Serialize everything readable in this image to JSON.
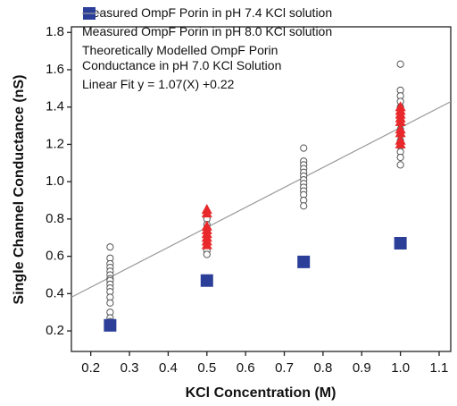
{
  "chart_data": {
    "type": "scatter",
    "x_label": "KCl Concentration (M)",
    "y_label": "Single Channel Conductance (nS)",
    "xlim": [
      0.15,
      1.13
    ],
    "ylim": [
      0.09,
      1.83
    ],
    "xticks": [
      0.2,
      0.3,
      0.4,
      0.5,
      0.6,
      0.7,
      0.8,
      0.9,
      {
        "value": 1,
        "label": "1.0"
      },
      1.1
    ],
    "yticks": [
      0.2,
      0.4,
      0.6,
      0.8,
      {
        "value": 1,
        "label": "1.0"
      },
      1.2,
      1.4,
      1.6,
      1.8
    ],
    "series": [
      {
        "name": "Measured OmpF Porin in pH 7.4 KCl solution",
        "type": "scatter",
        "marker": "circle",
        "color": "#555555",
        "x": [
          0.25,
          0.25,
          0.25,
          0.25,
          0.25,
          0.25,
          0.25,
          0.25,
          0.25,
          0.25,
          0.25,
          0.25,
          0.25,
          0.25,
          0.25,
          0.25,
          0.5,
          0.5,
          0.5,
          0.5,
          0.5,
          0.5,
          0.5,
          0.5,
          0.5,
          0.75,
          0.75,
          0.75,
          0.75,
          0.75,
          0.75,
          0.75,
          0.75,
          0.75,
          0.75,
          0.75,
          0.75,
          0.75,
          1,
          1,
          1,
          1,
          1,
          1,
          1,
          1,
          1,
          1,
          1,
          1,
          1,
          1,
          1
        ],
        "values": [
          0.65,
          0.59,
          0.56,
          0.54,
          0.52,
          0.5,
          0.48,
          0.47,
          0.45,
          0.43,
          0.41,
          0.38,
          0.35,
          0.3,
          0.27,
          0.25,
          0.8,
          0.77,
          0.74,
          0.71,
          0.69,
          0.67,
          0.65,
          0.63,
          0.61,
          1.18,
          1.11,
          1.09,
          1.07,
          1.05,
          1.03,
          1.01,
          0.99,
          0.97,
          0.95,
          0.93,
          0.9,
          0.87,
          1.63,
          1.49,
          1.46,
          1.43,
          1.4,
          1.37,
          1.34,
          1.31,
          1.28,
          1.25,
          1.22,
          1.19,
          1.16,
          1.13,
          1.09
        ]
      },
      {
        "name": "Measured OmpF Porin in pH 8.0 KCl solution",
        "type": "scatter",
        "marker": "triangle",
        "color": "#e8282b",
        "x": [
          0.5,
          0.5,
          0.5,
          0.5,
          0.5,
          0.5,
          0.5,
          0.5,
          1,
          1,
          1,
          1,
          1,
          1,
          1,
          1,
          1
        ],
        "values": [
          0.85,
          0.83,
          0.76,
          0.74,
          0.72,
          0.7,
          0.68,
          0.66,
          1.4,
          1.38,
          1.36,
          1.34,
          1.32,
          1.28,
          1.26,
          1.22,
          1.2
        ]
      },
      {
        "name": "Theoretically Modelled OmpF Porin\n    Conductance in pH 7.0 KCl Solution",
        "type": "scatter",
        "marker": "square",
        "color": "#2b3f99",
        "x": [
          0.25,
          0.5,
          0.75,
          1
        ],
        "values": [
          0.23,
          0.47,
          0.57,
          0.67
        ]
      },
      {
        "name": "Linear Fit y = 1.07(X) +0.22",
        "type": "line",
        "color": "#9a9a9a",
        "x": [
          0.15,
          1.13
        ],
        "values": [
          0.3805,
          1.4291
        ]
      }
    ]
  }
}
